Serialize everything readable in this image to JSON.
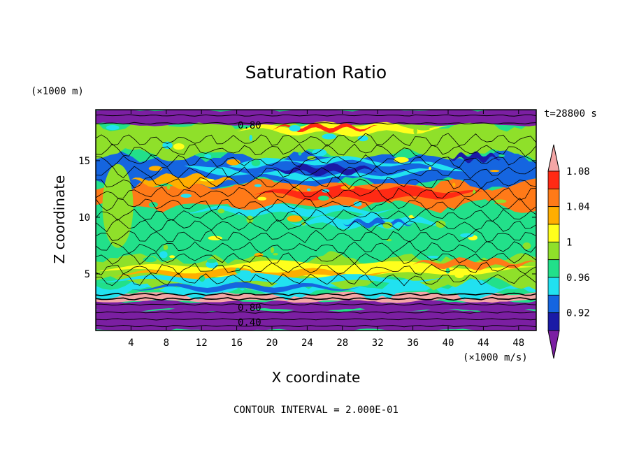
{
  "chart_data": {
    "type": "heatmap",
    "title": "Saturation Ratio",
    "xlabel": "X coordinate",
    "ylabel": "Z coordinate",
    "x_unit": "(×1000 m/s)",
    "y_unit": "(×1000 m)",
    "time_label": "t=28800 s",
    "footer": "CONTOUR INTERVAL = 2.000E-01",
    "xlim": [
      0,
      50
    ],
    "ylim": [
      0,
      19.5
    ],
    "x_ticks": [
      "4",
      "8",
      "12",
      "16",
      "20",
      "24",
      "28",
      "32",
      "36",
      "40",
      "44",
      "48"
    ],
    "y_ticks": [
      "5",
      "10",
      "15"
    ],
    "contour_labels": [
      "0.80",
      "0.80",
      "0.40"
    ],
    "colorbar": {
      "labels": [
        "0.92",
        "0.96",
        "1",
        "1.04",
        "1.08"
      ],
      "colors": [
        "#7b1fa2",
        "#1a1aa6",
        "#1565e0",
        "#21e1f0",
        "#22e08a",
        "#8fe02a",
        "#ffff1c",
        "#ffae00",
        "#ff7a18",
        "#ff2a14",
        "#f4a6a6"
      ]
    },
    "bands": [
      {
        "z": [
          0,
          1.8
        ],
        "level": "below 0.92"
      },
      {
        "z": [
          1.8,
          2.6
        ],
        "level": "below 0.92"
      },
      {
        "z": [
          2.6,
          3.3
        ],
        "level": "above 1.10"
      },
      {
        "z": [
          3.3,
          4.2
        ],
        "level": "0.96-0.98"
      },
      {
        "z": [
          4.2,
          6.5
        ],
        "level": "1.00-1.04"
      },
      {
        "z": [
          6.5,
          11.0
        ],
        "level": "0.98-1.02"
      },
      {
        "z": [
          11.0,
          13.0
        ],
        "level": "1.04-1.08"
      },
      {
        "z": [
          13.0,
          15.5
        ],
        "level": "0.92-0.98"
      },
      {
        "z": [
          15.5,
          18.2
        ],
        "level": "1.00-1.02"
      },
      {
        "z": [
          18.2,
          19.5
        ],
        "level": "below 0.92"
      }
    ]
  }
}
